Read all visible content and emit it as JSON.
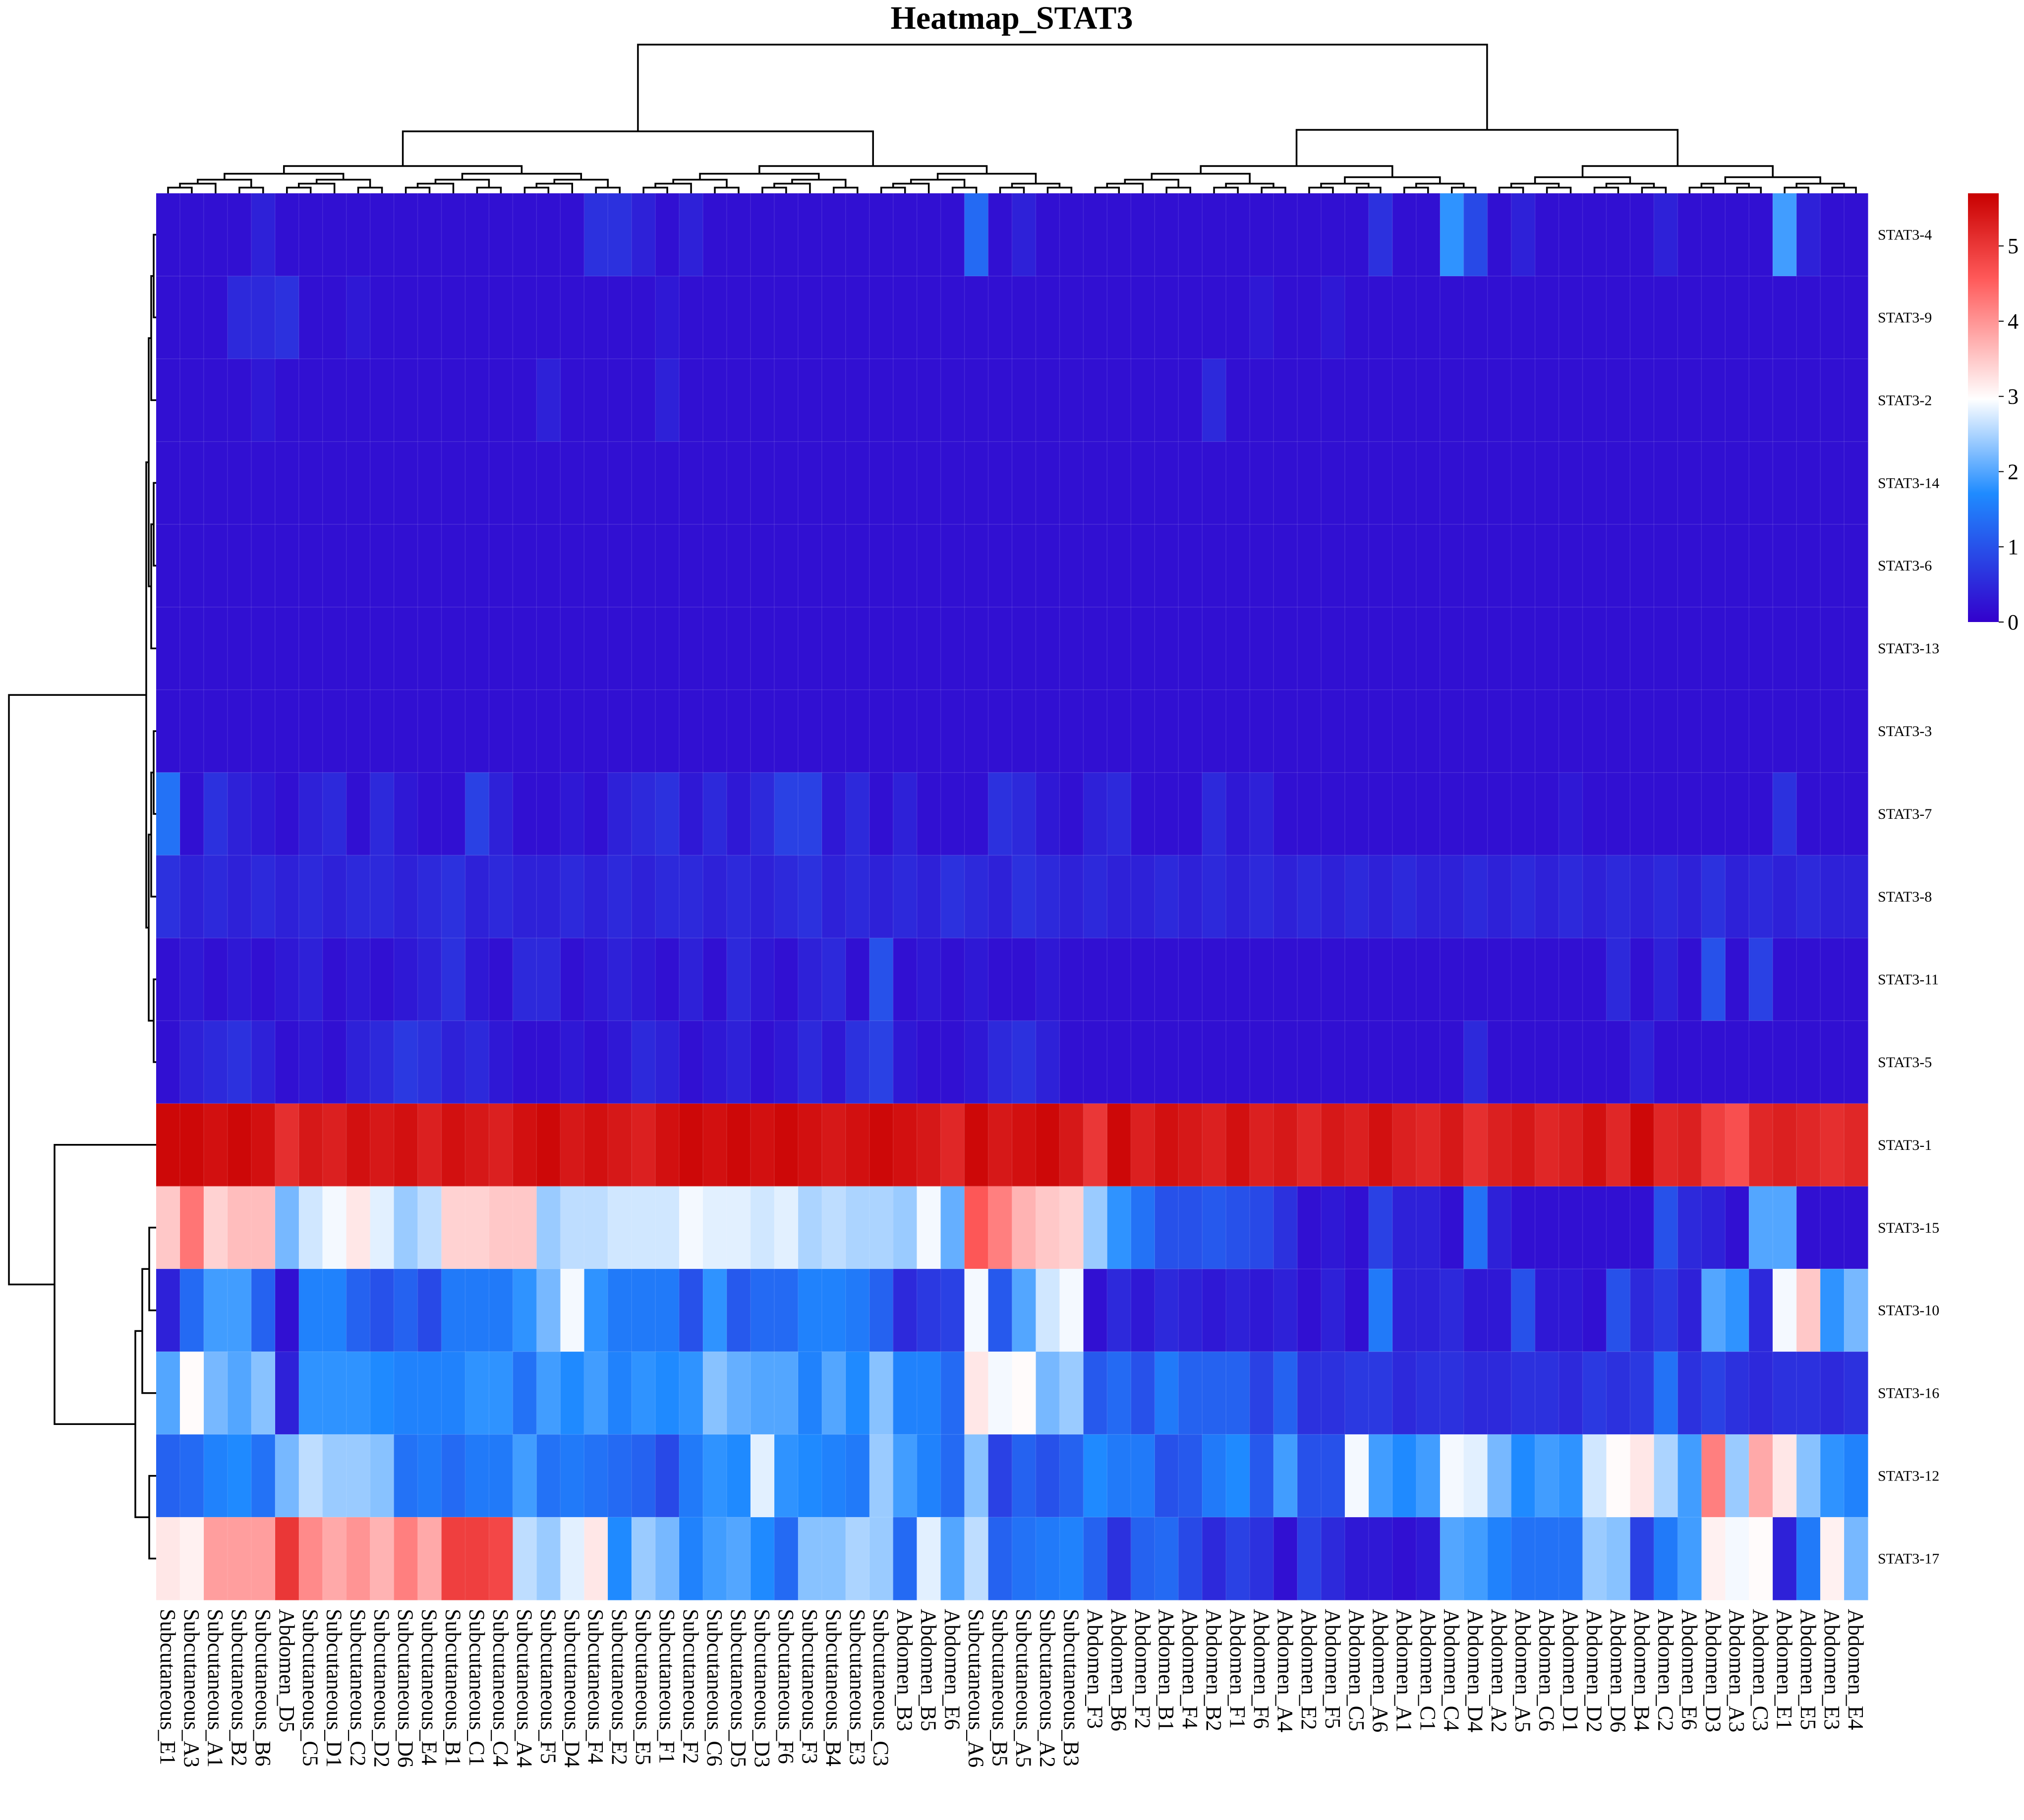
{
  "chart_data": {
    "type": "heatmap",
    "title": "Heatmap_STAT3",
    "color_scale": {
      "min": 0,
      "max": 5.7,
      "ticks": [
        0,
        1,
        2,
        3,
        4,
        5
      ],
      "colors": [
        "#3300cc",
        "#1f8bff",
        "#ffffff",
        "#ff5a5a",
        "#c80000"
      ],
      "stops": [
        0,
        0.3,
        0.52,
        0.8,
        1
      ]
    },
    "rows": [
      "STAT3-4",
      "STAT3-9",
      "STAT3-2",
      "STAT3-14",
      "STAT3-6",
      "STAT3-13",
      "STAT3-3",
      "STAT3-7",
      "STAT3-8",
      "STAT3-11",
      "STAT3-5",
      "STAT3-1",
      "STAT3-15",
      "STAT3-10",
      "STAT3-16",
      "STAT3-12",
      "STAT3-17"
    ],
    "columns": [
      "Subcutaneous_E1",
      "Subcutaneous_A3",
      "Subcutaneous_A1",
      "Subcutaneous_B2",
      "Subcutaneous_B6",
      "Abdomen_D5",
      "Subcutaneous_C5",
      "Subcutaneous_D1",
      "Subcutaneous_C2",
      "Subcutaneous_D2",
      "Subcutaneous_D6",
      "Subcutaneous_E4",
      "Subcutaneous_B1",
      "Subcutaneous_C1",
      "Subcutaneous_C4",
      "Subcutaneous_A4",
      "Subcutaneous_F5",
      "Subcutaneous_D4",
      "Subcutaneous_F4",
      "Subcutaneous_E2",
      "Subcutaneous_E5",
      "Subcutaneous_F1",
      "Subcutaneous_F2",
      "Subcutaneous_C6",
      "Subcutaneous_D5",
      "Subcutaneous_D3",
      "Subcutaneous_F6",
      "Subcutaneous_F3",
      "Subcutaneous_B4",
      "Subcutaneous_E3",
      "Subcutaneous_C3",
      "Abdomen_B3",
      "Abdomen_B5",
      "Abdomen_E6",
      "Subcutaneous_A6",
      "Subcutaneous_B5",
      "Subcutaneous_A5",
      "Subcutaneous_A2",
      "Subcutaneous_B3",
      "Abdomen_F3",
      "Abdomen_B6",
      "Abdomen_F2",
      "Abdomen_B1",
      "Abdomen_F4",
      "Abdomen_B2",
      "Abdomen_F1",
      "Abdomen_F6",
      "Abdomen_A4",
      "Abdomen_E2",
      "Abdomen_F5",
      "Abdomen_C5",
      "Abdomen_A6",
      "Abdomen_A1",
      "Abdomen_C1",
      "Abdomen_C4",
      "Abdomen_D4",
      "Abdomen_A2",
      "Abdomen_A5",
      "Abdomen_C6",
      "Abdomen_D1",
      "Abdomen_D2",
      "Abdomen_D6",
      "Abdomen_B4",
      "Abdomen_C2",
      "Abdomen_E6",
      "Abdomen_D3",
      "Abdomen_A3",
      "Abdomen_C3",
      "Abdomen_E1",
      "Abdomen_E5",
      "Abdomen_E3",
      "Abdomen_E4"
    ],
    "values": [
      [
        0.2,
        0.2,
        0.2,
        0.2,
        0.4,
        0.2,
        0.2,
        0.2,
        0.2,
        0.2,
        0.2,
        0.2,
        0.2,
        0.2,
        0.2,
        0.2,
        0.2,
        0.2,
        0.6,
        0.6,
        0.4,
        0.2,
        0.4,
        0.2,
        0.2,
        0.2,
        0.2,
        0.2,
        0.2,
        0.2,
        0.2,
        0.2,
        0.2,
        0.2,
        1.3,
        0.2,
        0.4,
        0.2,
        0.2,
        0.2,
        0.2,
        0.2,
        0.2,
        0.2,
        0.2,
        0.2,
        0.2,
        0.2,
        0.2,
        0.2,
        0.2,
        0.6,
        0.2,
        0.2,
        1.8,
        0.9,
        0.2,
        0.4,
        0.2,
        0.2,
        0.2,
        0.2,
        0.2,
        0.4,
        0.2,
        0.2,
        0.2,
        0.2,
        1.9,
        0.4,
        0.2,
        0.2
      ],
      [
        0.2,
        0.2,
        0.2,
        0.5,
        0.5,
        0.6,
        0.2,
        0.2,
        0.3,
        0.2,
        0.2,
        0.2,
        0.2,
        0.2,
        0.2,
        0.2,
        0.2,
        0.2,
        0.2,
        0.2,
        0.2,
        0.3,
        0.2,
        0.2,
        0.2,
        0.2,
        0.2,
        0.2,
        0.2,
        0.2,
        0.2,
        0.2,
        0.2,
        0.2,
        0.2,
        0.2,
        0.2,
        0.2,
        0.2,
        0.2,
        0.2,
        0.2,
        0.2,
        0.2,
        0.2,
        0.2,
        0.3,
        0.2,
        0.2,
        0.3,
        0.2,
        0.2,
        0.2,
        0.2,
        0.2,
        0.2,
        0.2,
        0.2,
        0.2,
        0.2,
        0.2,
        0.2,
        0.2,
        0.2,
        0.2,
        0.2,
        0.2,
        0.2,
        0.2,
        0.2,
        0.2,
        0.2
      ],
      [
        0.2,
        0.2,
        0.2,
        0.2,
        0.3,
        0.2,
        0.2,
        0.2,
        0.2,
        0.2,
        0.2,
        0.2,
        0.2,
        0.2,
        0.2,
        0.2,
        0.4,
        0.2,
        0.2,
        0.2,
        0.2,
        0.4,
        0.2,
        0.2,
        0.2,
        0.2,
        0.2,
        0.2,
        0.2,
        0.2,
        0.2,
        0.2,
        0.2,
        0.2,
        0.2,
        0.2,
        0.2,
        0.2,
        0.2,
        0.2,
        0.2,
        0.2,
        0.2,
        0.2,
        0.5,
        0.2,
        0.2,
        0.2,
        0.2,
        0.2,
        0.2,
        0.2,
        0.2,
        0.2,
        0.2,
        0.2,
        0.2,
        0.2,
        0.2,
        0.2,
        0.2,
        0.2,
        0.2,
        0.2,
        0.2,
        0.2,
        0.2,
        0.2,
        0.2,
        0.2,
        0.2,
        0.2
      ],
      [
        0.2,
        0.2,
        0.2,
        0.2,
        0.2,
        0.2,
        0.2,
        0.2,
        0.2,
        0.2,
        0.2,
        0.2,
        0.2,
        0.2,
        0.2,
        0.2,
        0.2,
        0.2,
        0.2,
        0.2,
        0.2,
        0.2,
        0.2,
        0.2,
        0.2,
        0.2,
        0.2,
        0.2,
        0.2,
        0.2,
        0.2,
        0.2,
        0.2,
        0.2,
        0.2,
        0.2,
        0.2,
        0.2,
        0.2,
        0.2,
        0.2,
        0.2,
        0.2,
        0.2,
        0.2,
        0.2,
        0.2,
        0.2,
        0.2,
        0.2,
        0.2,
        0.2,
        0.2,
        0.2,
        0.2,
        0.2,
        0.2,
        0.2,
        0.2,
        0.2,
        0.2,
        0.2,
        0.2,
        0.2,
        0.2,
        0.2,
        0.2,
        0.2,
        0.2,
        0.2,
        0.2,
        0.2
      ],
      [
        0.2,
        0.2,
        0.2,
        0.2,
        0.2,
        0.2,
        0.2,
        0.2,
        0.2,
        0.2,
        0.2,
        0.2,
        0.2,
        0.2,
        0.2,
        0.2,
        0.2,
        0.2,
        0.2,
        0.2,
        0.2,
        0.2,
        0.2,
        0.2,
        0.2,
        0.2,
        0.2,
        0.2,
        0.2,
        0.2,
        0.2,
        0.2,
        0.2,
        0.2,
        0.2,
        0.2,
        0.2,
        0.2,
        0.2,
        0.2,
        0.2,
        0.2,
        0.2,
        0.2,
        0.2,
        0.2,
        0.2,
        0.2,
        0.2,
        0.2,
        0.2,
        0.2,
        0.2,
        0.2,
        0.2,
        0.2,
        0.2,
        0.2,
        0.2,
        0.2,
        0.2,
        0.2,
        0.2,
        0.2,
        0.2,
        0.2,
        0.2,
        0.2,
        0.2,
        0.2,
        0.2,
        0.2
      ],
      [
        0.2,
        0.2,
        0.2,
        0.2,
        0.2,
        0.2,
        0.2,
        0.2,
        0.2,
        0.2,
        0.2,
        0.2,
        0.2,
        0.2,
        0.2,
        0.2,
        0.2,
        0.2,
        0.2,
        0.2,
        0.2,
        0.2,
        0.2,
        0.2,
        0.2,
        0.2,
        0.2,
        0.2,
        0.2,
        0.2,
        0.2,
        0.2,
        0.2,
        0.2,
        0.2,
        0.2,
        0.2,
        0.2,
        0.2,
        0.2,
        0.2,
        0.2,
        0.2,
        0.2,
        0.2,
        0.2,
        0.2,
        0.2,
        0.2,
        0.2,
        0.2,
        0.2,
        0.2,
        0.2,
        0.2,
        0.2,
        0.2,
        0.2,
        0.2,
        0.2,
        0.2,
        0.2,
        0.2,
        0.2,
        0.2,
        0.2,
        0.2,
        0.2,
        0.2,
        0.2,
        0.2,
        0.2
      ],
      [
        0.2,
        0.2,
        0.2,
        0.2,
        0.2,
        0.2,
        0.2,
        0.2,
        0.2,
        0.2,
        0.2,
        0.2,
        0.2,
        0.2,
        0.2,
        0.2,
        0.2,
        0.2,
        0.2,
        0.2,
        0.2,
        0.2,
        0.2,
        0.2,
        0.2,
        0.2,
        0.2,
        0.2,
        0.2,
        0.2,
        0.2,
        0.2,
        0.2,
        0.2,
        0.2,
        0.2,
        0.2,
        0.2,
        0.2,
        0.2,
        0.2,
        0.2,
        0.2,
        0.2,
        0.2,
        0.2,
        0.2,
        0.2,
        0.2,
        0.2,
        0.2,
        0.2,
        0.2,
        0.2,
        0.2,
        0.2,
        0.2,
        0.2,
        0.2,
        0.2,
        0.2,
        0.2,
        0.2,
        0.2,
        0.2,
        0.2,
        0.2,
        0.2,
        0.2,
        0.2,
        0.2,
        0.2
      ],
      [
        1.4,
        0.2,
        0.6,
        0.4,
        0.3,
        0.2,
        0.4,
        0.5,
        0.2,
        0.5,
        0.3,
        0.2,
        0.2,
        0.8,
        0.4,
        0.2,
        0.2,
        0.3,
        0.2,
        0.4,
        0.5,
        0.6,
        0.3,
        0.5,
        0.3,
        0.5,
        0.8,
        0.8,
        0.3,
        0.5,
        0.2,
        0.4,
        0.2,
        0.2,
        0.2,
        0.6,
        0.5,
        0.3,
        0.2,
        0.4,
        0.5,
        0.2,
        0.2,
        0.2,
        0.5,
        0.3,
        0.4,
        0.2,
        0.2,
        0.2,
        0.2,
        0.2,
        0.2,
        0.2,
        0.2,
        0.2,
        0.2,
        0.2,
        0.2,
        0.3,
        0.2,
        0.2,
        0.2,
        0.2,
        0.2,
        0.2,
        0.2,
        0.2,
        0.6,
        0.2,
        0.2,
        0.2
      ],
      [
        0.6,
        0.4,
        0.5,
        0.4,
        0.5,
        0.4,
        0.5,
        0.4,
        0.5,
        0.5,
        0.4,
        0.5,
        0.6,
        0.4,
        0.5,
        0.4,
        0.4,
        0.5,
        0.4,
        0.5,
        0.4,
        0.5,
        0.5,
        0.4,
        0.5,
        0.4,
        0.5,
        0.6,
        0.4,
        0.5,
        0.4,
        0.5,
        0.4,
        0.6,
        0.5,
        0.4,
        0.6,
        0.5,
        0.4,
        0.5,
        0.4,
        0.4,
        0.5,
        0.4,
        0.5,
        0.4,
        0.5,
        0.4,
        0.5,
        0.4,
        0.5,
        0.4,
        0.5,
        0.4,
        0.4,
        0.5,
        0.4,
        0.5,
        0.4,
        0.5,
        0.4,
        0.5,
        0.4,
        0.5,
        0.4,
        0.6,
        0.4,
        0.5,
        0.4,
        0.5,
        0.4,
        0.4
      ],
      [
        0.2,
        0.3,
        0.2,
        0.3,
        0.2,
        0.3,
        0.4,
        0.2,
        0.3,
        0.2,
        0.3,
        0.4,
        0.6,
        0.3,
        0.2,
        0.5,
        0.5,
        0.2,
        0.3,
        0.4,
        0.3,
        0.2,
        0.4,
        0.2,
        0.5,
        0.3,
        0.2,
        0.4,
        0.5,
        0.2,
        1.0,
        0.2,
        0.3,
        0.2,
        0.3,
        0.2,
        0.2,
        0.3,
        0.2,
        0.2,
        0.2,
        0.2,
        0.2,
        0.2,
        0.2,
        0.2,
        0.2,
        0.2,
        0.2,
        0.2,
        0.2,
        0.2,
        0.2,
        0.2,
        0.2,
        0.2,
        0.2,
        0.2,
        0.2,
        0.2,
        0.2,
        0.5,
        0.2,
        0.4,
        0.2,
        1.0,
        0.2,
        0.8,
        0.2,
        0.2,
        0.2,
        0.2
      ],
      [
        0.2,
        0.4,
        0.5,
        0.6,
        0.4,
        0.2,
        0.3,
        0.2,
        0.4,
        0.5,
        0.7,
        0.6,
        0.4,
        0.5,
        0.3,
        0.2,
        0.2,
        0.3,
        0.2,
        0.3,
        0.5,
        0.4,
        0.2,
        0.3,
        0.4,
        0.2,
        0.3,
        0.5,
        0.3,
        0.6,
        0.8,
        0.3,
        0.2,
        0.2,
        0.3,
        0.5,
        0.6,
        0.4,
        0.2,
        0.2,
        0.2,
        0.2,
        0.2,
        0.2,
        0.2,
        0.2,
        0.2,
        0.2,
        0.2,
        0.2,
        0.2,
        0.2,
        0.2,
        0.2,
        0.2,
        0.5,
        0.2,
        0.2,
        0.2,
        0.2,
        0.2,
        0.2,
        0.4,
        0.2,
        0.2,
        0.2,
        0.2,
        0.2,
        0.2,
        0.2,
        0.2,
        0.2
      ],
      [
        5.6,
        5.6,
        5.5,
        5.6,
        5.5,
        5.1,
        5.4,
        5.3,
        5.5,
        5.4,
        5.5,
        5.3,
        5.5,
        5.4,
        5.3,
        5.5,
        5.6,
        5.4,
        5.5,
        5.4,
        5.3,
        5.5,
        5.6,
        5.5,
        5.6,
        5.5,
        5.6,
        5.5,
        5.4,
        5.5,
        5.6,
        5.5,
        5.4,
        5.2,
        5.6,
        5.4,
        5.5,
        5.6,
        5.4,
        5.0,
        5.6,
        5.3,
        5.5,
        5.4,
        5.3,
        5.5,
        5.3,
        5.4,
        5.2,
        5.4,
        5.3,
        5.5,
        5.3,
        5.2,
        5.4,
        5.1,
        5.3,
        5.4,
        5.2,
        5.3,
        5.5,
        5.2,
        5.6,
        5.2,
        5.3,
        4.9,
        4.7,
        5.2,
        5.3,
        5.2,
        5.1,
        5.2
      ],
      [
        3.5,
        4.3,
        3.4,
        3.6,
        3.6,
        2.2,
        2.7,
        2.9,
        3.2,
        2.8,
        2.4,
        2.6,
        3.4,
        3.4,
        3.5,
        3.5,
        2.4,
        2.6,
        2.6,
        2.7,
        2.7,
        2.7,
        2.9,
        2.8,
        2.8,
        2.7,
        2.8,
        2.5,
        2.6,
        2.5,
        2.5,
        2.4,
        2.9,
        2.1,
        4.6,
        4.2,
        3.7,
        3.5,
        3.4,
        2.4,
        1.8,
        1.4,
        1.0,
        1.0,
        1.1,
        1.0,
        0.9,
        0.6,
        0.2,
        0.3,
        0.2,
        0.8,
        0.4,
        0.4,
        0.2,
        1.4,
        0.4,
        0.2,
        0.2,
        0.2,
        0.2,
        0.2,
        0.2,
        1.0,
        0.5,
        0.4,
        0.2,
        2.0,
        2.0,
        0.2,
        0.2,
        0.2
      ],
      [
        0.4,
        1.3,
        1.9,
        1.9,
        1.2,
        0.2,
        1.6,
        1.6,
        1.2,
        1.0,
        1.2,
        0.9,
        1.5,
        1.5,
        1.5,
        1.8,
        2.2,
        2.9,
        1.8,
        1.5,
        1.5,
        1.5,
        1.0,
        1.8,
        1.1,
        1.3,
        1.3,
        1.6,
        1.6,
        1.5,
        1.2,
        0.5,
        0.7,
        0.8,
        2.9,
        1.1,
        2.0,
        2.7,
        2.9,
        0.2,
        0.5,
        0.3,
        0.5,
        0.4,
        0.3,
        0.4,
        0.3,
        0.4,
        0.2,
        0.4,
        0.2,
        1.5,
        0.4,
        0.4,
        0.5,
        0.3,
        0.3,
        1.0,
        0.3,
        0.3,
        0.2,
        1.0,
        0.5,
        0.7,
        0.4,
        2.0,
        1.8,
        0.5,
        2.9,
        3.5,
        1.8,
        2.2
      ],
      [
        2.0,
        3.0,
        2.2,
        2.0,
        2.3,
        0.4,
        1.8,
        1.8,
        1.8,
        1.7,
        1.6,
        1.6,
        1.6,
        1.8,
        1.8,
        1.4,
        1.9,
        1.7,
        1.9,
        1.6,
        1.8,
        1.7,
        1.8,
        2.3,
        2.1,
        2.0,
        2.0,
        1.6,
        2.0,
        1.7,
        2.3,
        1.6,
        1.6,
        1.3,
        3.2,
        2.9,
        3.0,
        2.2,
        2.4,
        1.1,
        1.3,
        1.0,
        1.5,
        1.2,
        1.2,
        1.2,
        0.8,
        1.2,
        0.6,
        0.6,
        0.7,
        0.7,
        0.5,
        0.6,
        0.6,
        0.5,
        0.5,
        0.6,
        0.6,
        0.5,
        0.7,
        0.6,
        0.7,
        1.4,
        0.6,
        0.8,
        0.6,
        0.5,
        0.6,
        0.6,
        0.5,
        0.6
      ],
      [
        1.2,
        1.3,
        1.6,
        1.7,
        1.4,
        2.2,
        2.6,
        2.4,
        2.4,
        2.3,
        1.4,
        1.5,
        1.3,
        1.5,
        1.5,
        1.9,
        1.4,
        1.5,
        1.4,
        1.3,
        1.2,
        0.9,
        1.5,
        1.8,
        1.7,
        2.8,
        1.8,
        1.7,
        1.6,
        1.5,
        2.4,
        1.9,
        1.6,
        1.3,
        2.3,
        0.8,
        1.2,
        1.0,
        1.2,
        1.7,
        1.5,
        1.5,
        1.0,
        1.1,
        1.5,
        1.7,
        1.1,
        1.9,
        1.0,
        1.0,
        2.9,
        1.9,
        1.7,
        1.9,
        2.9,
        2.8,
        2.2,
        1.7,
        1.9,
        1.8,
        2.7,
        3.0,
        3.2,
        2.5,
        1.9,
        4.2,
        2.4,
        3.8,
        3.2,
        2.3,
        1.8,
        1.6
      ],
      [
        3.2,
        3.1,
        3.9,
        3.9,
        3.9,
        5.0,
        4.1,
        3.8,
        4.0,
        3.7,
        4.2,
        3.8,
        4.9,
        4.9,
        4.8,
        2.6,
        2.4,
        2.8,
        3.2,
        1.7,
        2.4,
        2.2,
        1.6,
        1.9,
        2.0,
        1.7,
        1.3,
        2.3,
        2.3,
        2.5,
        2.4,
        1.3,
        2.8,
        2.0,
        2.6,
        1.2,
        1.4,
        1.5,
        1.6,
        1.2,
        0.6,
        1.2,
        1.3,
        0.9,
        0.5,
        0.8,
        0.6,
        0.2,
        0.8,
        0.5,
        0.3,
        0.3,
        0.2,
        0.3,
        2.0,
        1.9,
        1.6,
        1.4,
        1.4,
        1.4,
        2.4,
        2.3,
        0.8,
        1.5,
        1.9,
        3.1,
        2.9,
        3.0,
        0.4,
        1.5,
        3.1,
        2.2
      ]
    ],
    "grid": false,
    "legend_placement": "right",
    "dendrograms": [
      "top",
      "left"
    ]
  }
}
